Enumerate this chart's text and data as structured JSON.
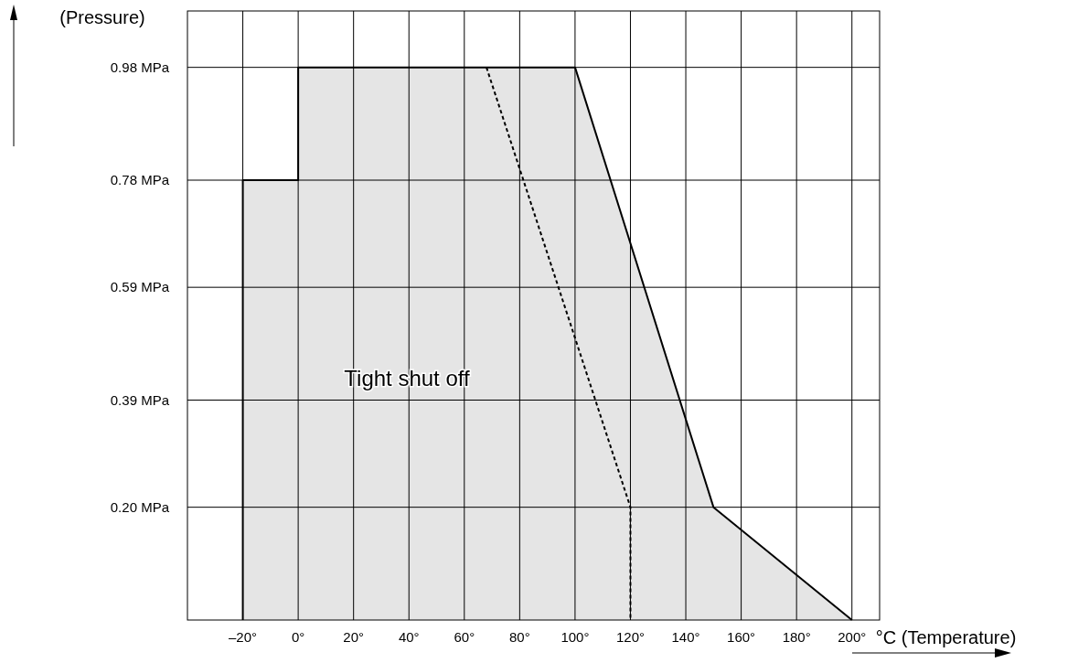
{
  "chart_data": {
    "type": "area",
    "xlabel": "°C (Temperature)",
    "ylabel": "(Pressure)",
    "xlim": [
      -40,
      210
    ],
    "ylim": [
      0,
      1.08
    ],
    "xticks": [
      {
        "value": -20,
        "label": "–20°"
      },
      {
        "value": 0,
        "label": "0°"
      },
      {
        "value": 20,
        "label": "20°"
      },
      {
        "value": 40,
        "label": "40°"
      },
      {
        "value": 60,
        "label": "60°"
      },
      {
        "value": 80,
        "label": "80°"
      },
      {
        "value": 100,
        "label": "100°"
      },
      {
        "value": 120,
        "label": "120°"
      },
      {
        "value": 140,
        "label": "140°"
      },
      {
        "value": 160,
        "label": "160°"
      },
      {
        "value": 180,
        "label": "180°"
      },
      {
        "value": 200,
        "label": "200°"
      }
    ],
    "yticks": [
      {
        "value": 0.2,
        "label": "0.20 MPa"
      },
      {
        "value": 0.39,
        "label": "0.39 MPa"
      },
      {
        "value": 0.59,
        "label": "0.59 MPa"
      },
      {
        "value": 0.78,
        "label": "0.78 MPa"
      },
      {
        "value": 0.98,
        "label": "0.98 MPa"
      }
    ],
    "grid": true,
    "series": [
      {
        "color": "#000000",
        "line_style": "solid",
        "x": [
          -20,
          -20,
          0,
          0,
          100,
          150,
          200
        ],
        "values": [
          0,
          0.78,
          0.78,
          0.98,
          0.98,
          0.2,
          0
        ]
      },
      {
        "type": "line",
        "color": "#000000",
        "line_style": "dashed",
        "x": [
          68,
          120,
          120
        ],
        "values": [
          0.98,
          0.2,
          0
        ]
      }
    ],
    "annotations": [
      "Tight shut off"
    ]
  }
}
